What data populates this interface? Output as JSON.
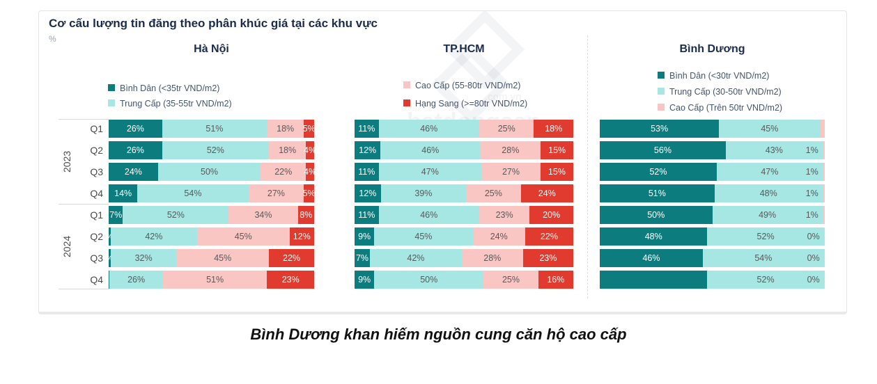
{
  "caption": "Bình Dương khan hiếm nguồn cung căn hộ cao cấp",
  "watermark": {
    "brand": "batdongsan",
    "domain": ".com.vn"
  },
  "chart_data": {
    "type": "bar",
    "variant": "stacked-horizontal-percent",
    "title": "Cơ cấu lượng tin đăng theo phân khúc giá tại các khu vực",
    "unit": "%",
    "year_groups": [
      {
        "label": "2023",
        "quarters": [
          "Q1",
          "Q2",
          "Q3",
          "Q4"
        ]
      },
      {
        "label": "2024",
        "quarters": [
          "Q1",
          "Q2",
          "Q3",
          "Q4"
        ]
      }
    ],
    "palette": {
      "dark_teal": "#0c7c7e",
      "light_teal": "#a6e6e3",
      "pink": "#f9c6c3",
      "red": "#e13b2f"
    },
    "label_text_colors": {
      "dark_teal": "#ffffff",
      "light_teal": "#58595b",
      "pink": "#58595b",
      "red": "#ffffff"
    },
    "regions": [
      {
        "name": "Hà Nội",
        "legend": [
          {
            "label": "Bình Dân (<35tr VND/m2)",
            "color": "dark_teal"
          },
          {
            "label": "Trung Cấp (35-55tr VND/m2)",
            "color": "light_teal"
          }
        ],
        "segments": [
          "dark_teal",
          "light_teal",
          "pink",
          "red"
        ],
        "rows": [
          [
            {
              "v": 26
            },
            {
              "v": 51
            },
            {
              "v": 18
            },
            {
              "v": 5
            }
          ],
          [
            {
              "v": 26
            },
            {
              "v": 52
            },
            {
              "v": 18
            },
            {
              "v": 4
            }
          ],
          [
            {
              "v": 24
            },
            {
              "v": 50
            },
            {
              "v": 22
            },
            {
              "v": 4
            }
          ],
          [
            {
              "v": 14
            },
            {
              "v": 54
            },
            {
              "v": 27
            },
            {
              "v": 5
            }
          ],
          [
            {
              "v": 7
            },
            {
              "v": 52
            },
            {
              "v": 34
            },
            {
              "v": 8
            }
          ],
          [
            {
              "v": 1,
              "t": "%"
            },
            {
              "v": 42
            },
            {
              "v": 45
            },
            {
              "v": 12
            }
          ],
          [
            {
              "v": 1,
              "t": "%"
            },
            {
              "v": 32
            },
            {
              "v": 45
            },
            {
              "v": 22
            }
          ],
          [
            {
              "v": 0.5,
              "t": ""
            },
            {
              "v": 26
            },
            {
              "v": 51
            },
            {
              "v": 23
            }
          ]
        ]
      },
      {
        "name": "TP.HCM",
        "legend": [
          {
            "label": "Cao Cấp (55-80tr VND/m2)",
            "color": "pink"
          },
          {
            "label": "Hạng Sang (>=80tr VND/m2)",
            "color": "red"
          }
        ],
        "segments": [
          "dark_teal",
          "light_teal",
          "pink",
          "red"
        ],
        "rows": [
          [
            {
              "v": 11
            },
            {
              "v": 46
            },
            {
              "v": 25
            },
            {
              "v": 18
            }
          ],
          [
            {
              "v": 12
            },
            {
              "v": 46
            },
            {
              "v": 28
            },
            {
              "v": 15
            }
          ],
          [
            {
              "v": 11
            },
            {
              "v": 47
            },
            {
              "v": 27
            },
            {
              "v": 15
            }
          ],
          [
            {
              "v": 12
            },
            {
              "v": 39
            },
            {
              "v": 25
            },
            {
              "v": 24
            }
          ],
          [
            {
              "v": 11
            },
            {
              "v": 46
            },
            {
              "v": 23
            },
            {
              "v": 20
            }
          ],
          [
            {
              "v": 9
            },
            {
              "v": 45
            },
            {
              "v": 24
            },
            {
              "v": 22
            }
          ],
          [
            {
              "v": 7
            },
            {
              "v": 42
            },
            {
              "v": 28
            },
            {
              "v": 23
            }
          ],
          [
            {
              "v": 9
            },
            {
              "v": 50
            },
            {
              "v": 25
            },
            {
              "v": 16
            }
          ]
        ]
      },
      {
        "name": "Bình Dương",
        "legend": [
          {
            "label": "Bình Dân (<30tr VND/m2)",
            "color": "dark_teal"
          },
          {
            "label": "Trung Cấp (30-50tr VND/m2)",
            "color": "light_teal"
          },
          {
            "label": "Cao Cấp (Trên 50tr VND/m2)",
            "color": "pink"
          }
        ],
        "segments": [
          "dark_teal",
          "light_teal",
          "pink"
        ],
        "rows": [
          [
            {
              "v": 53
            },
            {
              "v": 45
            },
            {
              "v": 2,
              "t": ""
            }
          ],
          [
            {
              "v": 56
            },
            {
              "v": 43
            },
            {
              "v": 1,
              "out": true
            }
          ],
          [
            {
              "v": 52
            },
            {
              "v": 47
            },
            {
              "v": 1,
              "out": true
            }
          ],
          [
            {
              "v": 51
            },
            {
              "v": 48
            },
            {
              "v": 1,
              "out": true
            }
          ],
          [
            {
              "v": 50
            },
            {
              "v": 49
            },
            {
              "v": 1,
              "out": true
            }
          ],
          [
            {
              "v": 48
            },
            {
              "v": 52
            },
            {
              "v": 0,
              "t": "0%",
              "out": true,
              "w": 0.4
            }
          ],
          [
            {
              "v": 46
            },
            {
              "v": 54
            },
            {
              "v": 0,
              "t": "0%",
              "out": true,
              "w": 0.4
            }
          ],
          [
            {
              "v": 48,
              "t": ""
            },
            {
              "v": 52
            },
            {
              "v": 0,
              "t": "0%",
              "out": true,
              "w": 0.4
            }
          ]
        ]
      }
    ]
  }
}
